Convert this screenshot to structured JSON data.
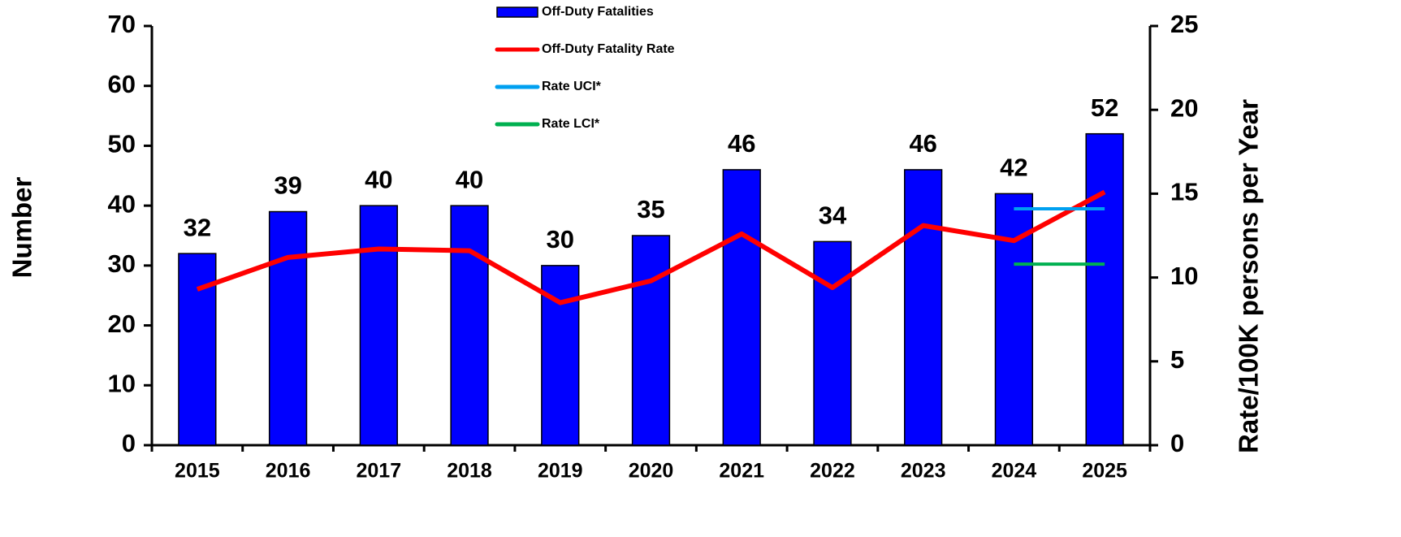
{
  "chart_data": {
    "type": "bar",
    "categories": [
      "2015",
      "2016",
      "2017",
      "2018",
      "2019",
      "2020",
      "2021",
      "2022",
      "2023",
      "2024",
      "2025"
    ],
    "series": [
      {
        "name": "Off-Duty Fatalities",
        "type": "bar",
        "color": "#0000ff",
        "values": [
          32,
          39,
          40,
          40,
          30,
          35,
          46,
          34,
          46,
          42,
          52
        ]
      },
      {
        "name": "Off-Duty Fatality Rate",
        "type": "line",
        "axis": "y2",
        "color": "#ff0000",
        "values": [
          9.3,
          11.2,
          11.7,
          11.6,
          8.5,
          9.8,
          12.6,
          9.4,
          13.1,
          12.2,
          15.1
        ]
      },
      {
        "name": "Rate UCI*",
        "type": "line",
        "axis": "y2",
        "color": "#00a0f0",
        "values": [
          null,
          null,
          null,
          null,
          null,
          null,
          null,
          null,
          null,
          14.1,
          14.1
        ]
      },
      {
        "name": "Rate LCI*",
        "type": "line",
        "axis": "y2",
        "color": "#00b050",
        "values": [
          null,
          null,
          null,
          null,
          null,
          null,
          null,
          null,
          null,
          10.8,
          10.8
        ]
      }
    ],
    "ylabel": "Number",
    "y2label": "Rate/100K persons per Year",
    "ylim": [
      0,
      70
    ],
    "yticks": [
      0,
      10,
      20,
      30,
      40,
      50,
      60,
      70
    ],
    "y2lim": [
      0,
      25
    ],
    "y2ticks": [
      0,
      5,
      10,
      15,
      20,
      25
    ],
    "grid": false
  }
}
